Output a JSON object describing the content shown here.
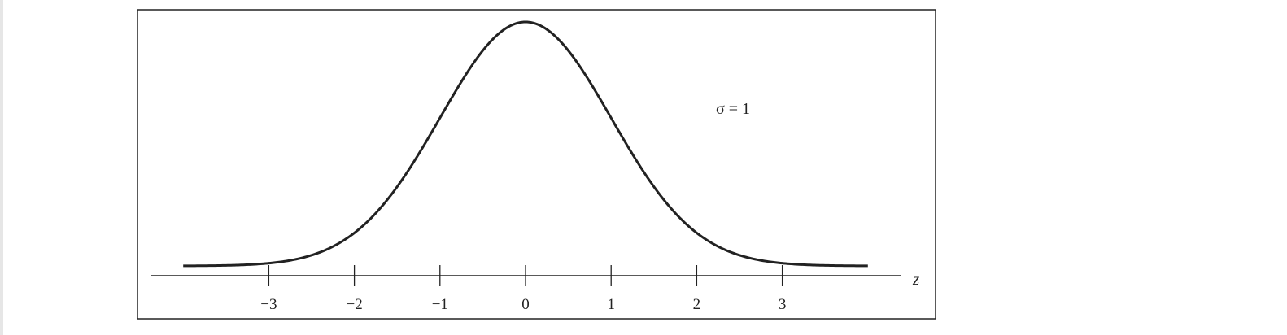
{
  "chart_data": {
    "type": "line",
    "title": "",
    "xlabel": "z",
    "ylabel": "",
    "xlim": [
      -4,
      4
    ],
    "ylim": [
      0,
      0.4
    ],
    "x_ticks": [
      -3,
      -2,
      -1,
      0,
      1,
      2,
      3
    ],
    "x_tick_labels": [
      "−3",
      "−2",
      "−1",
      "0",
      "1",
      "2",
      "3"
    ],
    "grid": false,
    "legend": "none",
    "annotation": "σ = 1",
    "series": [
      {
        "distribution": "standard normal",
        "mean": 0,
        "sd": 1,
        "x_range": [
          -4,
          4
        ]
      }
    ],
    "colors": {
      "line": "#222222",
      "frame": "#222222",
      "background": "#ffffff"
    }
  }
}
